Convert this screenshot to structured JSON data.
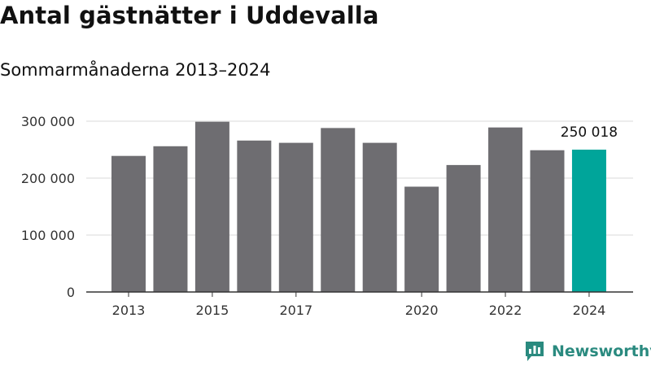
{
  "header": {
    "title": "Antal gästnätter i Uddevalla",
    "subtitle": "Sommarmånaderna 2013–2024"
  },
  "brand": {
    "name": "Newsworthy",
    "icon": "newsworthy-logo-icon",
    "color": "#2a8a7f"
  },
  "colors": {
    "bar": "#6e6d71",
    "highlight": "#00a59a",
    "grid": "#d9d9d9",
    "axis": "#333333"
  },
  "chart_data": {
    "type": "bar",
    "title": "Antal gästnätter i Uddevalla",
    "subtitle": "Sommarmånaderna 2013–2024",
    "categories": [
      "2013",
      "2014",
      "2015",
      "2016",
      "2017",
      "2018",
      "2019",
      "2020",
      "2021",
      "2022",
      "2023",
      "2024"
    ],
    "values": [
      239000,
      256000,
      299000,
      266000,
      262000,
      288000,
      262000,
      185000,
      223000,
      289000,
      249000,
      250018
    ],
    "highlight_index": 11,
    "data_labels": [
      {
        "index": 11,
        "text": "250 018"
      }
    ],
    "x_tick_labels": [
      "2013",
      "2015",
      "2017",
      "2020",
      "2022",
      "2024"
    ],
    "y_ticks": [
      0,
      100000,
      200000,
      300000
    ],
    "y_tick_labels": [
      "0",
      "100 000",
      "200 000",
      "300 000"
    ],
    "ylim": [
      0,
      300000
    ],
    "xlabel": "",
    "ylabel": "",
    "grid": true,
    "legend": "none"
  }
}
